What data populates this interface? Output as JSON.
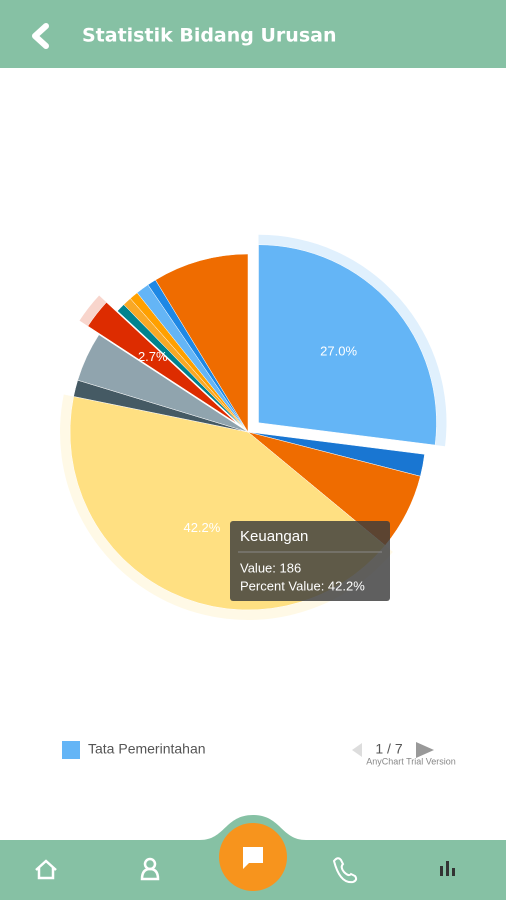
{
  "header": {
    "title": "Statistik Bidang Urusan"
  },
  "chart_data": {
    "type": "pie",
    "categories": [
      "Tata Pemerintahan",
      null,
      null,
      "Keuangan",
      null,
      null,
      null,
      null,
      null,
      null,
      null,
      null,
      null
    ],
    "values": [
      27.0,
      2.0,
      7.0,
      42.2,
      1.5,
      4.5,
      2.7,
      0.8,
      0.8,
      0.8,
      1.2,
      0.8,
      8.7
    ],
    "value_labels": [
      "27.0%",
      null,
      null,
      "42.2%",
      null,
      null,
      "2.7%",
      null,
      null,
      null,
      null,
      null,
      null
    ],
    "colors": [
      "#64b5f6",
      "#1976d2",
      "#ef6c00",
      "#ffe082",
      "#455a64",
      "#90a4ae",
      "#dd2c00",
      "#00838f",
      "#f9a825",
      "#ffa000",
      "#64b5f6",
      "#1e88e5",
      "#ef6c00"
    ],
    "exploded": [
      0,
      6
    ],
    "hovered": 3,
    "legend": {
      "items": [
        0
      ],
      "pager": "1 / 7",
      "credit": "AnyChart Trial Version"
    },
    "tooltip": {
      "title": "Keuangan",
      "value_text": "Value: 186",
      "percent_text": "Percent Value: 42.2%"
    }
  }
}
